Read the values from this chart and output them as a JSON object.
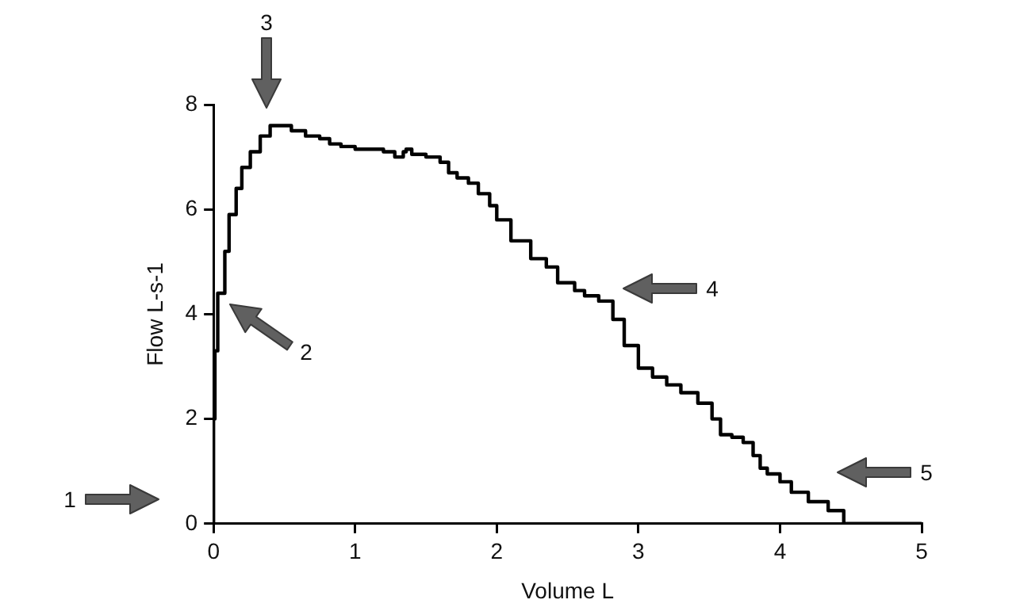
{
  "chart_data": {
    "type": "step",
    "xlabel": "Volume L",
    "ylabel": "Flow L-s-1",
    "xlim": [
      0,
      5
    ],
    "xticks": [
      0,
      1,
      2,
      3,
      4,
      5
    ],
    "ylim": [
      0,
      8
    ],
    "yticks": [
      0,
      2,
      4,
      6,
      8
    ],
    "grid": false,
    "legend": false,
    "marker": "none",
    "line_style": "solid",
    "series": [
      {
        "color": "#000000",
        "x": [
          0,
          0.01,
          0.03,
          0.08,
          0.11,
          0.16,
          0.2,
          0.26,
          0.33,
          0.4,
          0.47,
          0.55,
          0.65,
          0.75,
          0.82,
          0.9,
          1.0,
          1.1,
          1.2,
          1.28,
          1.34,
          1.36,
          1.4,
          1.45,
          1.5,
          1.6,
          1.66,
          1.72,
          1.8,
          1.87,
          1.95,
          2.0,
          2.1,
          2.24,
          2.35,
          2.43,
          2.55,
          2.62,
          2.72,
          2.82,
          2.9,
          3.0,
          3.1,
          3.2,
          3.3,
          3.42,
          3.52,
          3.58,
          3.66,
          3.74,
          3.81,
          3.86,
          3.91,
          4.0,
          4.08,
          4.2,
          4.34,
          4.45,
          4.58,
          4.7,
          5.0
        ],
        "values": [
          0,
          2.0,
          3.3,
          4.4,
          5.2,
          5.9,
          6.4,
          6.8,
          7.1,
          7.4,
          7.6,
          7.6,
          7.5,
          7.4,
          7.35,
          7.25,
          7.2,
          7.15,
          7.15,
          7.1,
          7.0,
          7.1,
          7.15,
          7.05,
          7.05,
          7.0,
          6.9,
          6.7,
          6.6,
          6.5,
          6.3,
          6.07,
          5.8,
          5.4,
          5.06,
          4.9,
          4.6,
          4.45,
          4.35,
          4.25,
          3.9,
          3.4,
          2.97,
          2.8,
          2.65,
          2.5,
          2.3,
          2.0,
          1.7,
          1.65,
          1.55,
          1.3,
          1.06,
          0.95,
          0.8,
          0.6,
          0.42,
          0.25,
          0,
          0,
          0
        ]
      }
    ],
    "annotations": [
      "1",
      "2",
      "3",
      "4",
      "5"
    ]
  }
}
